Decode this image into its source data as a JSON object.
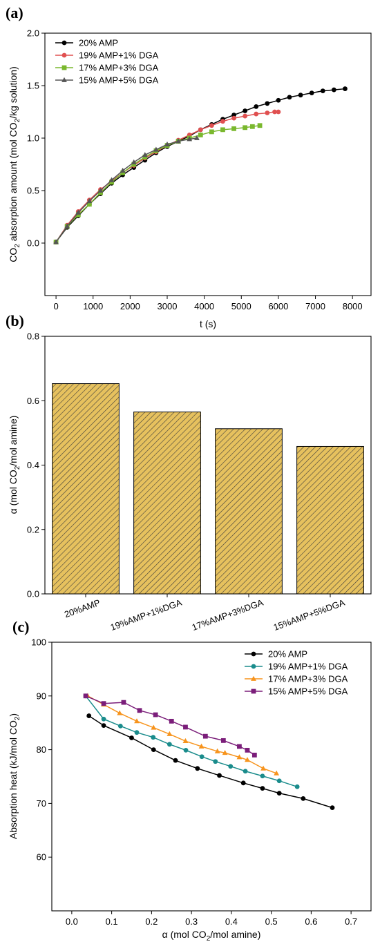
{
  "chart_data": [
    {
      "panel_label": "(a)",
      "type": "line",
      "xlabel": "t (s)",
      "ylabel_main": "CO",
      "ylabel_sub": "2",
      "ylabel_rest": " absorption amount (mol CO",
      "ylabel_sub2": "2",
      "ylabel_end": "/kg solution)",
      "xlim": [
        -300,
        8500
      ],
      "ylim": [
        -0.5,
        2.0
      ],
      "xticks": [
        0,
        1000,
        2000,
        3000,
        4000,
        5000,
        6000,
        7000,
        8000
      ],
      "yticks": [
        0.0,
        0.5,
        1.0,
        1.5,
        2.0
      ],
      "ytick_labels": [
        "0.0",
        "0.5",
        "1.0",
        "1.5",
        "2.0"
      ],
      "legend_position": "top-left",
      "series": [
        {
          "name": "20% AMP",
          "color": "#000000",
          "marker": "circle",
          "x": [
            0,
            300,
            600,
            900,
            1200,
            1500,
            1800,
            2100,
            2400,
            2700,
            3000,
            3300,
            3600,
            3900,
            4200,
            4500,
            4800,
            5100,
            5400,
            5700,
            6000,
            6300,
            6600,
            6900,
            7200,
            7500,
            7800
          ],
          "y": [
            0.01,
            0.15,
            0.26,
            0.37,
            0.47,
            0.57,
            0.65,
            0.72,
            0.79,
            0.86,
            0.92,
            0.97,
            1.02,
            1.08,
            1.13,
            1.18,
            1.22,
            1.26,
            1.3,
            1.33,
            1.36,
            1.39,
            1.41,
            1.43,
            1.45,
            1.46,
            1.47
          ]
        },
        {
          "name": "19% AMP+1% DGA",
          "color": "#e05050",
          "marker": "circle",
          "x": [
            0,
            300,
            600,
            900,
            1200,
            1500,
            1800,
            2100,
            2400,
            2700,
            3000,
            3300,
            3600,
            3900,
            4200,
            4500,
            4800,
            5100,
            5400,
            5700,
            5900,
            6000
          ],
          "y": [
            0.01,
            0.17,
            0.3,
            0.41,
            0.51,
            0.59,
            0.67,
            0.74,
            0.81,
            0.87,
            0.93,
            0.98,
            1.03,
            1.08,
            1.12,
            1.16,
            1.19,
            1.21,
            1.23,
            1.24,
            1.25,
            1.25
          ]
        },
        {
          "name": "17% AMP+3% DGA",
          "color": "#7ab82e",
          "marker": "square",
          "x": [
            0,
            300,
            600,
            900,
            1200,
            1500,
            1800,
            2100,
            2400,
            2700,
            3000,
            3300,
            3600,
            3900,
            4200,
            4500,
            4800,
            5100,
            5300,
            5500
          ],
          "y": [
            0.01,
            0.16,
            0.27,
            0.37,
            0.48,
            0.58,
            0.67,
            0.75,
            0.82,
            0.88,
            0.93,
            0.97,
            1.0,
            1.03,
            1.06,
            1.08,
            1.09,
            1.1,
            1.11,
            1.12
          ]
        },
        {
          "name": "15% AMP+5% DGA",
          "color": "#555555",
          "marker": "triangle",
          "x": [
            0,
            300,
            600,
            900,
            1200,
            1500,
            1800,
            2100,
            2400,
            2700,
            3000,
            3300,
            3600,
            3800
          ],
          "y": [
            0.01,
            0.16,
            0.29,
            0.4,
            0.5,
            0.6,
            0.69,
            0.77,
            0.84,
            0.89,
            0.94,
            0.97,
            0.99,
            1.0
          ]
        }
      ]
    },
    {
      "panel_label": "(b)",
      "type": "bar",
      "ylabel": "α (mol CO",
      "ylabel_sub": "2",
      "ylabel_end": "/mol amine)",
      "ylim": [
        0.0,
        0.8
      ],
      "yticks": [
        0.0,
        0.2,
        0.4,
        0.6,
        0.8
      ],
      "ytick_labels": [
        "0.0",
        "0.2",
        "0.4",
        "0.6",
        "0.8"
      ],
      "categories": [
        "20%AMP",
        "19%AMP+1%DGA",
        "17%AMP+3%DGA",
        "15%AMP+5%DGA"
      ],
      "values": [
        0.653,
        0.565,
        0.513,
        0.458
      ],
      "bar_color": "#e6c15e",
      "hatch_color": "#3b3b3b"
    },
    {
      "panel_label": "(c)",
      "type": "line",
      "xlabel": "α (mol CO",
      "xlabel_sub": "2",
      "xlabel_end": "/mol amine)",
      "ylabel": "Absorption heat (kJ/mol CO",
      "ylabel_sub": "2",
      "ylabel_end": ")",
      "xlim": [
        -0.05,
        0.75
      ],
      "ylim": [
        50,
        100
      ],
      "xticks": [
        0.0,
        0.1,
        0.2,
        0.3,
        0.4,
        0.5,
        0.6,
        0.7
      ],
      "xtick_labels": [
        "0.0",
        "0.1",
        "0.2",
        "0.3",
        "0.4",
        "0.5",
        "0.6",
        "0.7"
      ],
      "yticks": [
        60,
        70,
        80,
        90,
        100
      ],
      "ytick_labels": [
        "60",
        "70",
        "80",
        "90",
        "100"
      ],
      "legend_position": "top-right",
      "series": [
        {
          "name": "20% AMP",
          "color": "#000000",
          "marker": "circle",
          "x": [
            0.043,
            0.08,
            0.15,
            0.205,
            0.26,
            0.315,
            0.37,
            0.43,
            0.478,
            0.52,
            0.58,
            0.653
          ],
          "y": [
            86.3,
            84.5,
            82.2,
            80.0,
            78.0,
            76.5,
            75.2,
            73.8,
            72.8,
            71.9,
            70.9,
            69.2
          ]
        },
        {
          "name": "19% AMP+1% DGA",
          "color": "#1a8c8c",
          "marker": "circle",
          "x": [
            0.035,
            0.08,
            0.122,
            0.163,
            0.204,
            0.245,
            0.286,
            0.326,
            0.36,
            0.398,
            0.435,
            0.478,
            0.52,
            0.565
          ],
          "y": [
            90.0,
            85.7,
            84.4,
            83.2,
            82.3,
            81.0,
            79.9,
            78.7,
            77.8,
            76.9,
            76.0,
            75.1,
            74.2,
            73.1
          ]
        },
        {
          "name": "17% AMP+3% DGA",
          "color": "#f7941d",
          "marker": "triangle",
          "x": [
            0.04,
            0.08,
            0.12,
            0.163,
            0.205,
            0.245,
            0.285,
            0.325,
            0.365,
            0.384,
            0.42,
            0.44,
            0.48,
            0.513
          ],
          "y": [
            90.0,
            88.4,
            86.8,
            85.3,
            84.1,
            82.9,
            81.6,
            80.6,
            79.7,
            79.4,
            78.6,
            78.1,
            76.5,
            75.6
          ]
        },
        {
          "name": "15% AMP+5% DGA",
          "color": "#7b1e7a",
          "marker": "square",
          "x": [
            0.035,
            0.08,
            0.13,
            0.17,
            0.21,
            0.25,
            0.285,
            0.335,
            0.38,
            0.42,
            0.44,
            0.458
          ],
          "y": [
            90.0,
            88.6,
            88.8,
            87.3,
            86.5,
            85.3,
            84.2,
            82.5,
            81.7,
            80.6,
            79.9,
            79.0
          ]
        }
      ]
    }
  ]
}
